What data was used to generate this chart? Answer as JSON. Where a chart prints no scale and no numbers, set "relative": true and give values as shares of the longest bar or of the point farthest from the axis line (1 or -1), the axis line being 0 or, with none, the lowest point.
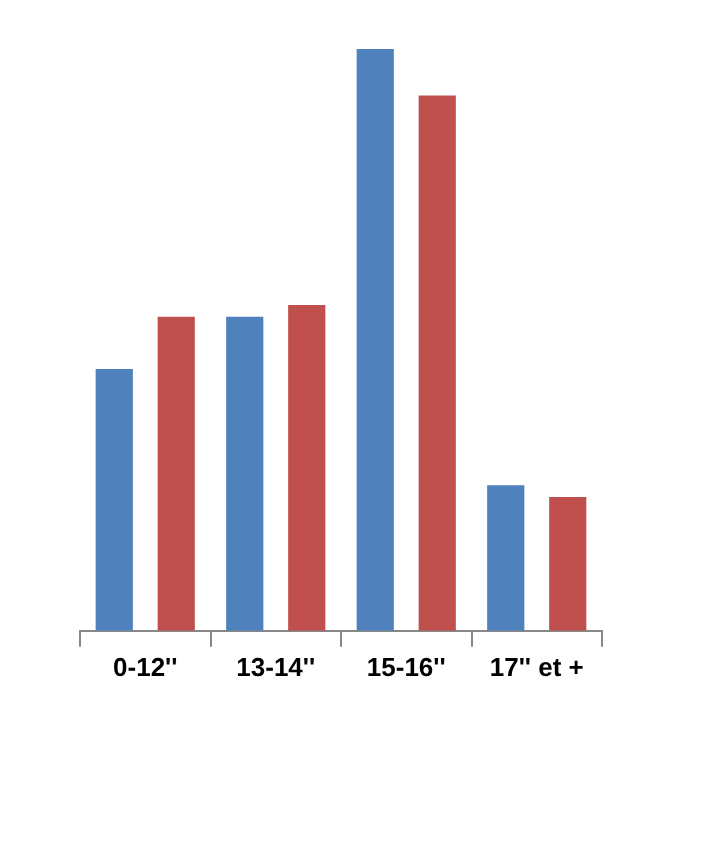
{
  "chart_data": {
    "type": "bar",
    "relative": true,
    "categories": [
      "0-12''",
      "13-14''",
      "15-16''",
      "17'' et +"
    ],
    "series": [
      {
        "color": "#4f81bd",
        "values": [
          0.45,
          0.54,
          1,
          0.25
        ]
      },
      {
        "color": "#c0504d",
        "values": [
          0.54,
          0.56,
          0.92,
          0.23
        ]
      }
    ]
  }
}
